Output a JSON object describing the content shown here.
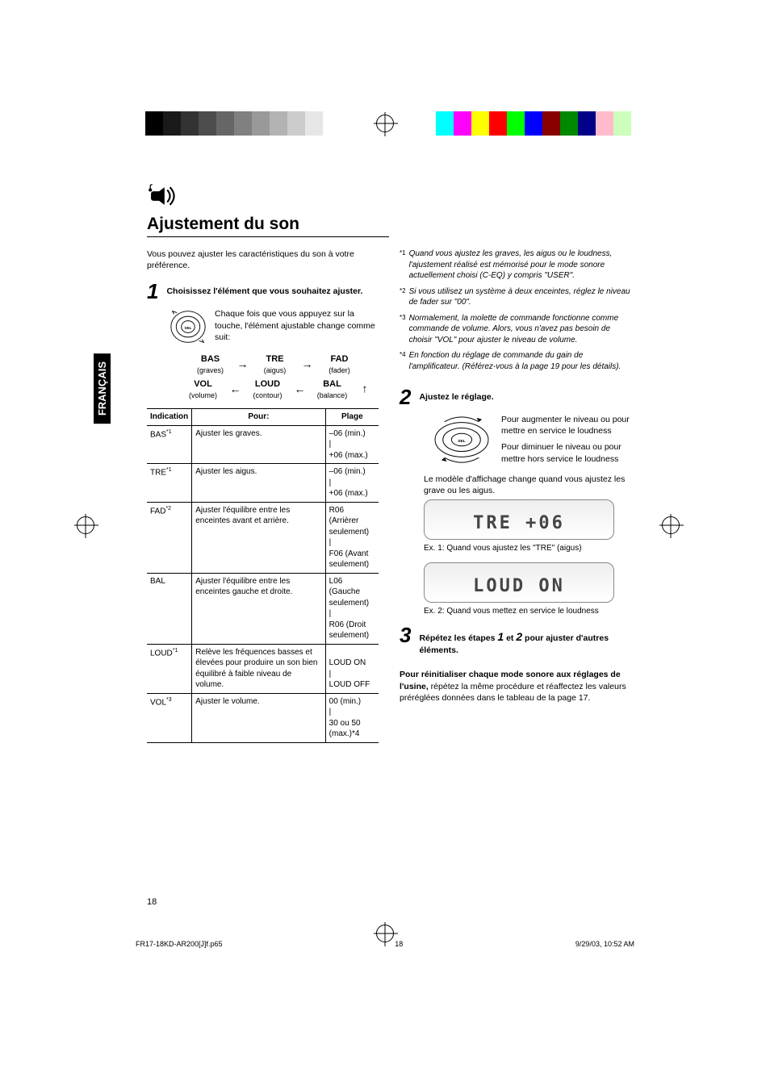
{
  "sideTab": "FRANÇAIS",
  "title": "Ajustement du son",
  "intro": "Vous pouvez ajuster les caractéristiques du son à votre préférence.",
  "step1": {
    "num": "1",
    "text": "Choisissez l'élément que vous souhaitez ajuster."
  },
  "knobText": "Chaque fois que vous appuyez sur la touche, l'élément ajustable change comme suit:",
  "flow": {
    "bas": {
      "abbr": "BAS",
      "label": "(graves)"
    },
    "tre": {
      "abbr": "TRE",
      "label": "(aigus)"
    },
    "fad": {
      "abbr": "FAD",
      "label": "(fader)"
    },
    "vol": {
      "abbr": "VOL",
      "label": "(volume)"
    },
    "loud": {
      "abbr": "LOUD",
      "label": "(contour)"
    },
    "bal": {
      "abbr": "BAL",
      "label": "(balance)"
    }
  },
  "table": {
    "headers": {
      "ind": "Indication",
      "pour": "Pour:",
      "plage": "Plage"
    },
    "rows": [
      {
        "ind": "BAS",
        "sup": "*1",
        "pour": "Ajuster les graves.",
        "plage": "–06 (min.)\n|\n+06 (max.)"
      },
      {
        "ind": "TRE",
        "sup": "*1",
        "pour": "Ajuster les aigus.",
        "plage": "–06 (min.)\n|\n+06 (max.)"
      },
      {
        "ind": "FAD",
        "sup": "*2",
        "pour": "Ajuster l'équilibre entre les enceintes avant et arrière.",
        "plage": "R06 (Arrièrer\n      seulement)\n|\nF06 (Avant\n      seulement)"
      },
      {
        "ind": "BAL",
        "sup": "",
        "pour": "Ajuster l'équilibre entre les enceintes gauche et droite.",
        "plage": "L06 (Gauche\n      seulement)\n|\nR06 (Droit\n      seulement)"
      },
      {
        "ind": "LOUD",
        "sup": "*1",
        "pour": "Relève les fréquences basses et élevées pour produire un son bien équilibré à faible niveau de volume.",
        "plage": "\nLOUD ON\n|\nLOUD OFF"
      },
      {
        "ind": "VOL",
        "sup": "*3",
        "pour": "Ajuster le volume.",
        "plage": "00 (min.)\n|\n30 ou 50 (max.)*4"
      }
    ]
  },
  "footnotes": [
    {
      "mark": "*1",
      "text": "Quand vous ajustez les graves, les aigus ou le loudness, l'ajustement réalisé est mémorisé pour le mode sonore actuellement choisi (C-EQ) y compris \"USER\"."
    },
    {
      "mark": "*2",
      "text": "Si vous utilisez un système à deux enceintes, réglez le niveau de fader sur \"00\"."
    },
    {
      "mark": "*3",
      "text": "Normalement, la molette de commande fonctionne comme commande de volume. Alors, vous n'avez pas besoin de choisir \"VOL\" pour ajuster le niveau de volume."
    },
    {
      "mark": "*4",
      "text": "En fonction du réglage de commande du gain de l'amplificateur. (Référez-vous à la page 19 pour les détails)."
    }
  ],
  "step2": {
    "num": "2",
    "text": "Ajustez le réglage."
  },
  "dialUp": "Pour augmenter le niveau ou pour mettre en service le loudness",
  "dialDown": "Pour diminuer le niveau ou pour mettre hors service le loudness",
  "modelNote": "Le modèle d'affichage change quand vous ajustez les grave ou les aigus.",
  "lcd1": "TRE  +06",
  "ex1": "Ex. 1: Quand vous ajustez les \"TRE\" (aigus)",
  "lcd2": "LOUD  ON",
  "ex2": "Ex. 2: Quand vous mettez en service le loudness",
  "step3": {
    "num": "3",
    "pre": "Répétez les étapes ",
    "mid": " et ",
    "post": " pour ajuster d'autres éléments.",
    "a": "1",
    "b": "2"
  },
  "reset": {
    "bold": "Pour réinitialiser chaque mode sonore aux réglages de l'usine,",
    "rest": " répétez la même procédure et réaffectez les valeurs préréglées données dans le tableau de la page 17."
  },
  "pageNum": "18",
  "footer": {
    "file": "FR17-18KD-AR200[J]f.p65",
    "page": "18",
    "date": "9/29/03, 10:52 AM"
  },
  "colorbars": {
    "left": [
      "#000",
      "#1a1a1a",
      "#333",
      "#4d4d4d",
      "#666",
      "#808080",
      "#999",
      "#b3b3b3",
      "#ccc",
      "#e6e6e6",
      "#fff"
    ],
    "right": [
      "#0ff",
      "#f0f",
      "#ff0",
      "#f00",
      "#0f0",
      "#00f",
      "#800",
      "#080",
      "#008",
      "#fbc",
      "#cfb"
    ]
  }
}
